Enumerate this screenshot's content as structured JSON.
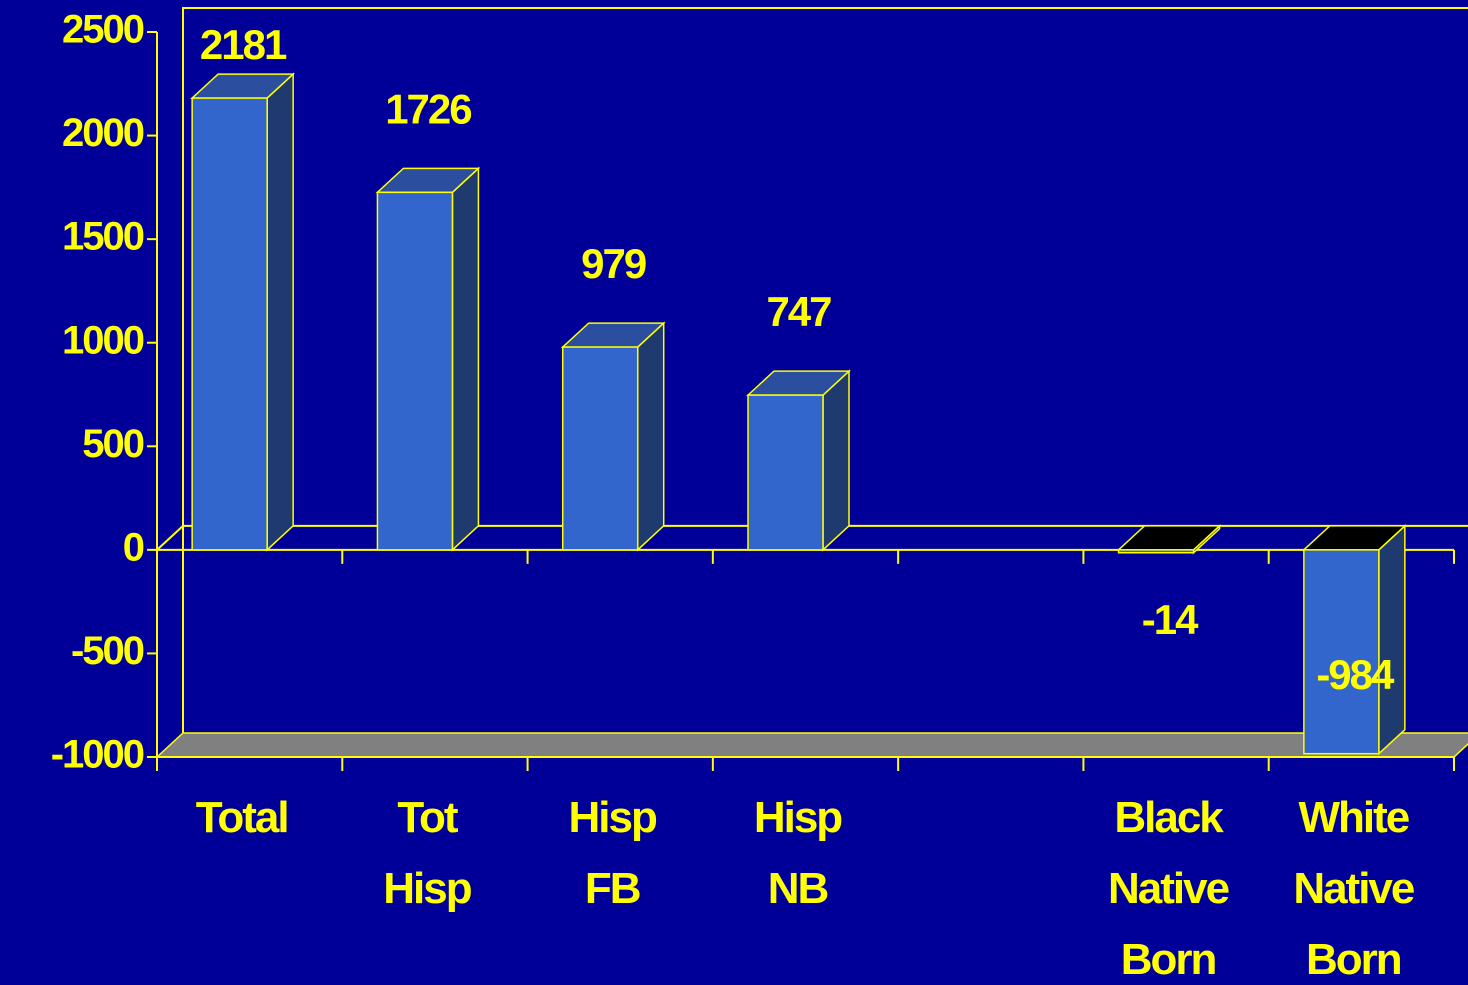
{
  "chart_data": {
    "type": "bar",
    "categories": [
      "Total",
      "Tot Hisp",
      "Hisp FB",
      "Hisp NB",
      null,
      "Black Native Born",
      "White Native Born"
    ],
    "values": [
      2181,
      1726,
      979,
      747,
      null,
      -14,
      -984
    ],
    "color": "#3366cc",
    "ylim": [
      -1000,
      2500
    ],
    "yticks": [
      2500,
      2000,
      1500,
      1000,
      500,
      0,
      -500,
      -1000
    ]
  }
}
